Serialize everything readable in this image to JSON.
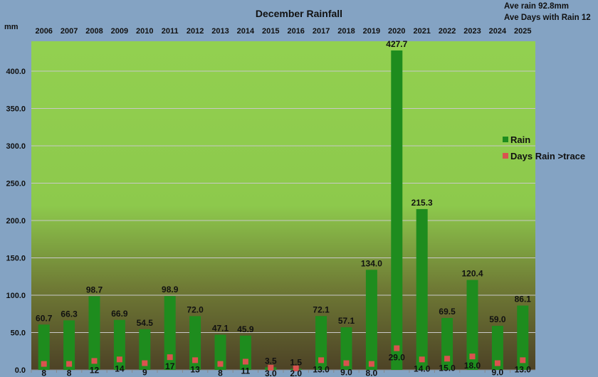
{
  "chart_data": {
    "type": "bar",
    "title": "December Rainfall",
    "ylabel": "mm",
    "xlabel": "",
    "ylim": [
      0,
      440
    ],
    "yticks": [
      "0.0",
      "50.0",
      "100.0",
      "150.0",
      "200.0",
      "250.0",
      "300.0",
      "350.0",
      "400.0"
    ],
    "grid": true,
    "legend_position": "right",
    "annotations": [
      "Ave rain 92.8mm",
      "Ave Days with Rain 12"
    ],
    "categories": [
      "2006",
      "2007",
      "2008",
      "2009",
      "2010",
      "2011",
      "2012",
      "2013",
      "2014",
      "2015",
      "2016",
      "2017",
      "2018",
      "2019",
      "2020",
      "2021",
      "2022",
      "2023",
      "2024",
      "2025"
    ],
    "series": [
      {
        "name": "Rain",
        "type": "bar",
        "color": "#1e8c1e",
        "values": [
          60.7,
          66.3,
          98.7,
          66.9,
          54.5,
          98.9,
          72.0,
          47.1,
          45.9,
          3.5,
          1.5,
          72.1,
          57.1,
          134.0,
          427.7,
          215.3,
          69.5,
          120.4,
          59.0,
          86.1
        ],
        "labels": [
          "60.7",
          "66.3",
          "98.7",
          "66.9",
          "54.5",
          "98.9",
          "72.0",
          "47.1",
          "45.9",
          "3.5",
          "1.5",
          "72.1",
          "57.1",
          "134.0",
          "427.7",
          "215.3",
          "69.5",
          "120.4",
          "59.0",
          "86.1"
        ]
      },
      {
        "name": "Days Rain >trace",
        "type": "marker",
        "color": "#d9534f",
        "values": [
          8,
          8,
          12,
          14,
          9,
          17,
          13,
          8,
          11,
          3,
          2,
          13,
          9,
          8,
          29,
          14,
          15,
          18,
          9,
          13
        ],
        "labels": [
          "8",
          "8",
          "12",
          "14",
          "9",
          "17",
          "13",
          "8",
          "11",
          "3.0",
          "2.0",
          "13.0",
          "9.0",
          "8.0",
          "29.0",
          "14.0",
          "15.0",
          "18.0",
          "9.0",
          "13.0"
        ]
      }
    ]
  }
}
